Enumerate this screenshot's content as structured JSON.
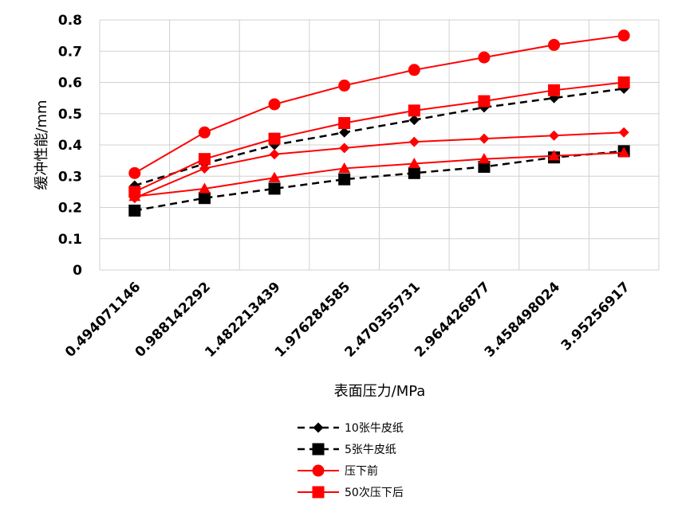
{
  "chart_data": {
    "type": "line",
    "xlabel": "表面压力/MPa",
    "ylabel": "缓冲性能/mm",
    "ylim": [
      0,
      0.8
    ],
    "yticks": [
      "0",
      "0.1",
      "0.2",
      "0.3",
      "0.4",
      "0.5",
      "0.6",
      "0.7",
      "0.8"
    ],
    "categories": [
      "0.494071146",
      "0.988142292",
      "1.482213439",
      "1.976284585",
      "2.470355731",
      "2.964426877",
      "3.458498024",
      "3.95256917"
    ],
    "grid": true,
    "legend_position": "bottom",
    "series": [
      {
        "name": "10张牛皮纸",
        "color": "#000000",
        "dash": true,
        "marker": "diamond",
        "legend": true,
        "values": [
          0.27,
          0.34,
          0.4,
          0.44,
          0.48,
          0.52,
          0.55,
          0.58
        ]
      },
      {
        "name": "5张牛皮纸",
        "color": "#000000",
        "dash": true,
        "marker": "square",
        "legend": true,
        "values": [
          0.19,
          0.23,
          0.26,
          0.29,
          0.31,
          0.33,
          0.36,
          0.38
        ]
      },
      {
        "name": "压下前",
        "color": "#ff0000",
        "dash": false,
        "marker": "circle",
        "legend": true,
        "values": [
          0.31,
          0.44,
          0.53,
          0.59,
          0.64,
          0.68,
          0.72,
          0.75
        ]
      },
      {
        "name": "50次压下后",
        "color": "#ff0000",
        "dash": false,
        "marker": "square",
        "legend": true,
        "values": [
          0.25,
          0.355,
          0.42,
          0.47,
          0.51,
          0.54,
          0.575,
          0.6
        ]
      },
      {
        "name": "",
        "color": "#ff0000",
        "dash": false,
        "marker": "diamond",
        "legend": false,
        "values": [
          0.23,
          0.325,
          0.37,
          0.39,
          0.41,
          0.42,
          0.43,
          0.44
        ]
      },
      {
        "name": "",
        "color": "#ff0000",
        "dash": false,
        "marker": "triangle",
        "legend": false,
        "values": [
          0.235,
          0.26,
          0.295,
          0.325,
          0.34,
          0.355,
          0.365,
          0.375
        ]
      }
    ]
  }
}
